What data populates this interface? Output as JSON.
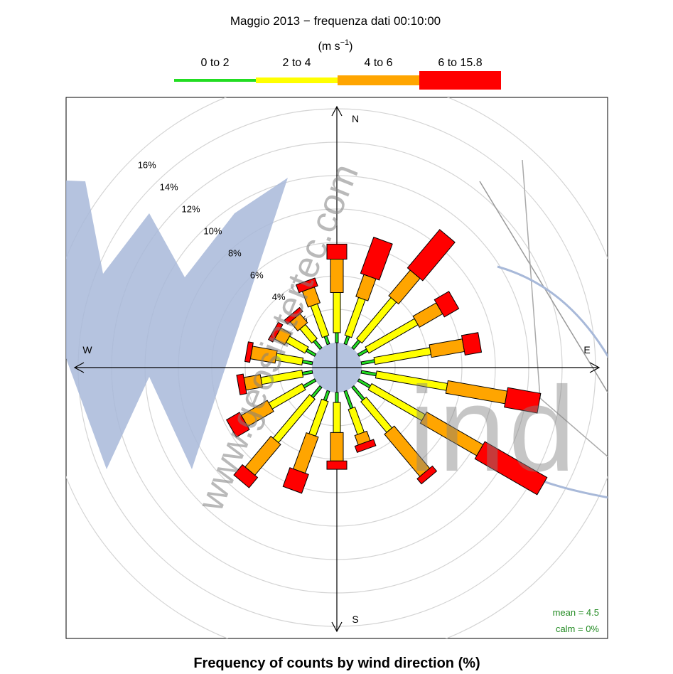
{
  "chart_data": {
    "type": "windrose",
    "title": "Maggio 2013 − frequenza dati 00:10:00",
    "legend": {
      "unit_prefix": "(m s",
      "unit_exp": "−1",
      "unit_suffix": ")",
      "bins": [
        {
          "label": "0 to 2",
          "color": "#22dd22"
        },
        {
          "label": "2 to 4",
          "color": "#ffff00"
        },
        {
          "label": "4 to 6",
          "color": "#ffa500"
        },
        {
          "label": "6 to 15.8",
          "color": "#ff0000"
        }
      ]
    },
    "xlabel": "Frequency of counts by wind direction (%)",
    "compass": {
      "n": "N",
      "e": "E",
      "s": "S",
      "w": "W"
    },
    "radial_ticks": [
      {
        "value": 2,
        "label": "2%"
      },
      {
        "value": 4,
        "label": "4%"
      },
      {
        "value": 6,
        "label": "6%"
      },
      {
        "value": 8,
        "label": "8%"
      },
      {
        "value": 10,
        "label": "10%"
      },
      {
        "value": 12,
        "label": "12%"
      },
      {
        "value": 14,
        "label": "14%"
      },
      {
        "value": 16,
        "label": "16%"
      }
    ],
    "directions_deg": [
      0,
      20,
      40,
      60,
      80,
      100,
      120,
      140,
      160,
      180,
      200,
      220,
      240,
      260,
      280,
      300,
      320,
      340
    ],
    "series": [
      {
        "name": "0 to 2",
        "values": [
          0.6,
          0.5,
          0.6,
          0.6,
          0.8,
          0.9,
          0.8,
          1.0,
          1.1,
          0.6,
          0.6,
          0.8,
          0.8,
          0.6,
          0.6,
          0.6,
          0.6,
          0.5
        ]
      },
      {
        "name": "2 to 4",
        "values": [
          2.4,
          2.4,
          3.2,
          3.4,
          3.4,
          4.3,
          3.7,
          2.4,
          1.6,
          1.8,
          2.2,
          3.4,
          2.3,
          2.5,
          1.6,
          1.3,
          1.1,
          2.0
        ]
      },
      {
        "name": "4 to 6",
        "values": [
          2.0,
          1.4,
          2.0,
          1.6,
          2.0,
          3.6,
          3.9,
          3.3,
          0.6,
          1.7,
          2.3,
          2.4,
          1.8,
          1.0,
          1.5,
          0.7,
          0.7,
          1.0
        ]
      },
      {
        "name": "6 to 15.8",
        "values": [
          0.9,
          2.3,
          3.0,
          1.0,
          1.0,
          2.0,
          4.3,
          0.4,
          0.4,
          0.5,
          1.2,
          0.8,
          0.9,
          0.4,
          0.3,
          0.3,
          0.3,
          0.5
        ]
      }
    ],
    "stats": {
      "mean": "mean = 4.5",
      "calm": "calm = 0%"
    },
    "grid": true
  },
  "watermark": {
    "url_text": "www.geosintertec.com",
    "wind_text": "ind"
  }
}
